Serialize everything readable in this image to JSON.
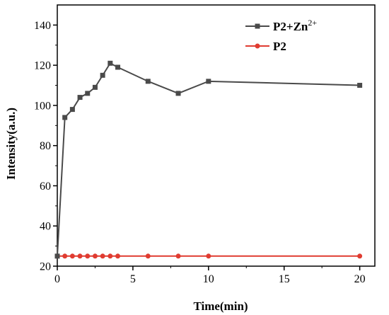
{
  "chart_data": {
    "type": "line",
    "title": "",
    "xlabel": "Time(min)",
    "ylabel": "Intensity(a.u.)",
    "xlim": [
      0,
      21
    ],
    "ylim": [
      20,
      150
    ],
    "xticks": [
      0,
      5,
      10,
      15,
      20
    ],
    "yticks": [
      20,
      40,
      60,
      80,
      100,
      120,
      140
    ],
    "legend_position": "top-right",
    "grid": false,
    "series": [
      {
        "name": "P2+Zn2+",
        "name_main": "P2+Zn",
        "name_sup": "2+",
        "color": "#4a4a4a",
        "marker": "square",
        "x": [
          0,
          0.5,
          1,
          1.5,
          2,
          2.5,
          3,
          3.5,
          4,
          6,
          8,
          10,
          20
        ],
        "y": [
          25,
          94,
          98,
          104,
          106,
          109,
          115,
          121,
          119,
          112,
          106,
          112,
          110
        ]
      },
      {
        "name": "P2",
        "color": "#e03c31",
        "marker": "circle",
        "x": [
          0,
          0.5,
          1,
          1.5,
          2,
          2.5,
          3,
          3.5,
          4,
          6,
          8,
          10,
          20
        ],
        "y": [
          25,
          25,
          25,
          25,
          25,
          25,
          25,
          25,
          25,
          25,
          25,
          25,
          25
        ]
      }
    ]
  }
}
